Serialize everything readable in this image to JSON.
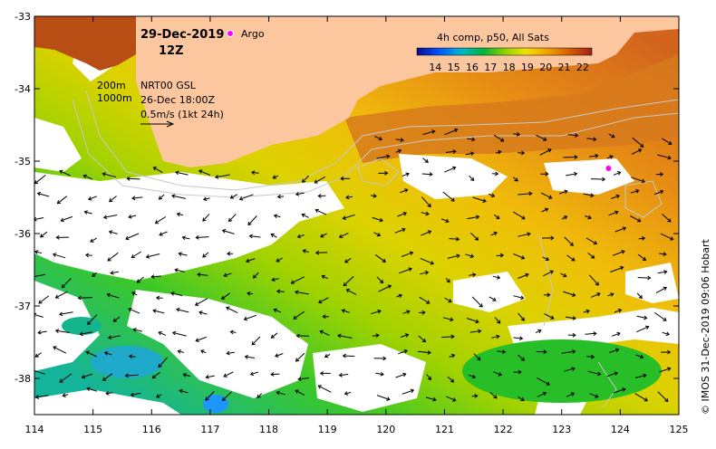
{
  "map": {
    "date": "29-Dec-2019",
    "hour": "12Z",
    "argo_label": "Argo",
    "composite_title": "4h comp, p50, All Sats",
    "colorbar_ticks": [
      "14",
      "15",
      "16",
      "17",
      "18",
      "19",
      "20",
      "21",
      "22"
    ],
    "colorbar_range": [
      13,
      22.5
    ],
    "colors": {
      "land": "#fcc79e",
      "ocean_cold": "#1ea0ff",
      "ocean_mid": "#c8dc00",
      "ocean_warm": "#d26400",
      "argo": "#ff00ff",
      "contour": "#c8c8c8"
    },
    "contour_depths": [
      "200m",
      "1000m"
    ],
    "product": "NRT00 GSL",
    "current_time": "26-Dec 18:00Z",
    "velocity_scale": "0.5m/s (1kt 24h)",
    "credit": "© IMOS 31-Dec-2019 09:06 Hobart",
    "lon_ticks": [
      "114",
      "115",
      "116",
      "117",
      "118",
      "119",
      "120",
      "121",
      "122",
      "123",
      "124",
      "125"
    ],
    "lat_ticks": [
      "-33",
      "-34",
      "-35",
      "-36",
      "-37",
      "-38"
    ],
    "lon_range": [
      114,
      125
    ],
    "lat_range": [
      -38.5,
      -33
    ],
    "argo_position": {
      "lon": 123.8,
      "lat": -35.1
    }
  }
}
